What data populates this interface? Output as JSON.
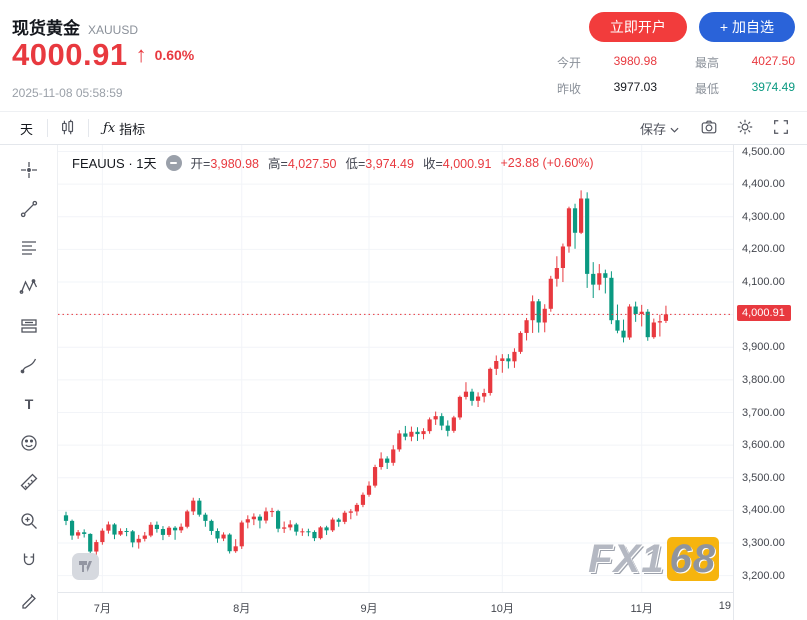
{
  "header": {
    "title": "现货黄金",
    "symbol": "XAUUSD",
    "price": "4000.91",
    "arrow": "↑",
    "change_pct": "0.60%",
    "timestamp": "2025-11-08 05:58:59",
    "open_account": "立即开户",
    "add_watchlist": "+ 加自选",
    "stats": [
      {
        "label": "今开",
        "value": "3980.98"
      },
      {
        "label": "最高",
        "value": "4027.50"
      },
      {
        "label": "昨收",
        "value": "3977.03"
      },
      {
        "label": "最低",
        "value": "3974.49"
      }
    ]
  },
  "toolbar": {
    "interval": "天",
    "fx": "ƒx",
    "indicators": "指标",
    "save": "保存"
  },
  "legend": {
    "symbol": "FEAUUS · 1天",
    "open_label": "开=",
    "open": "3,980.98",
    "high_label": "高=",
    "high": "4,027.50",
    "low_label": "低=",
    "low": "3,974.49",
    "close_label": "收=",
    "close": "4,000.91",
    "change": "+23.88 (+0.60%)"
  },
  "axis": {
    "price_ticks": [
      {
        "label": "4,500.00",
        "value": 4500
      },
      {
        "label": "4,400.00",
        "value": 4400
      },
      {
        "label": "4,300.00",
        "value": 4300
      },
      {
        "label": "4,200.00",
        "value": 4200
      },
      {
        "label": "4,100.00",
        "value": 4100
      },
      {
        "label": "4,000.00",
        "value": 4000
      },
      {
        "label": "3,900.00",
        "value": 3900
      },
      {
        "label": "3,800.00",
        "value": 3800
      },
      {
        "label": "3,700.00",
        "value": 3700
      },
      {
        "label": "3,600.00",
        "value": 3600
      },
      {
        "label": "3,500.00",
        "value": 3500
      },
      {
        "label": "3,400.00",
        "value": 3400
      },
      {
        "label": "3,300.00",
        "value": 3300
      },
      {
        "label": "3,200.00",
        "value": 3200
      }
    ],
    "edge_label": "19",
    "last_price_label": "4,000.91"
  },
  "watermark": {
    "fx": "FX1",
    "gold": "68"
  },
  "colors": {
    "up": "#e8393f",
    "down": "#0a9981",
    "btn_red": "#f23c3c",
    "btn_blue": "#2a63d9",
    "text_dark": "#15181e",
    "text_gray": "#8a9099"
  },
  "chart_data": {
    "type": "candlestick",
    "title": "FEAUUS · 1天",
    "ylim": [
      3150,
      4520
    ],
    "last_price": 4000.91,
    "legend_ohlc": {
      "open": 3980.98,
      "high": 4027.5,
      "low": 3974.49,
      "close": 4000.91,
      "change": 23.88,
      "change_pct": 0.6
    },
    "months": [
      {
        "label": "7月",
        "i": 6
      },
      {
        "label": "8月",
        "i": 29
      },
      {
        "label": "9月",
        "i": 50
      },
      {
        "label": "10月",
        "i": 72
      },
      {
        "label": "11月",
        "i": 95
      }
    ],
    "ohlc": [
      [
        3385,
        3396,
        3355,
        3368
      ],
      [
        3368,
        3372,
        3310,
        3323
      ],
      [
        3323,
        3340,
        3313,
        3333
      ],
      [
        3333,
        3342,
        3317,
        3328
      ],
      [
        3328,
        3330,
        3262,
        3274
      ],
      [
        3274,
        3310,
        3246,
        3303
      ],
      [
        3303,
        3345,
        3295,
        3338
      ],
      [
        3338,
        3366,
        3329,
        3357
      ],
      [
        3357,
        3361,
        3312,
        3326
      ],
      [
        3326,
        3345,
        3322,
        3337
      ],
      [
        3337,
        3346,
        3321,
        3336
      ],
      [
        3336,
        3340,
        3287,
        3302
      ],
      [
        3302,
        3325,
        3283,
        3313
      ],
      [
        3313,
        3334,
        3305,
        3323
      ],
      [
        3323,
        3364,
        3318,
        3356
      ],
      [
        3356,
        3366,
        3332,
        3343
      ],
      [
        3343,
        3352,
        3309,
        3325
      ],
      [
        3325,
        3352,
        3319,
        3347
      ],
      [
        3347,
        3352,
        3310,
        3339
      ],
      [
        3339,
        3360,
        3331,
        3350
      ],
      [
        3350,
        3402,
        3345,
        3397
      ],
      [
        3397,
        3439,
        3386,
        3430
      ],
      [
        3430,
        3438,
        3381,
        3387
      ],
      [
        3387,
        3393,
        3350,
        3368
      ],
      [
        3368,
        3372,
        3325,
        3337
      ],
      [
        3337,
        3345,
        3301,
        3314
      ],
      [
        3314,
        3333,
        3306,
        3326
      ],
      [
        3326,
        3330,
        3268,
        3275
      ],
      [
        3275,
        3312,
        3270,
        3290
      ],
      [
        3290,
        3369,
        3282,
        3363
      ],
      [
        3363,
        3385,
        3345,
        3373
      ],
      [
        3373,
        3391,
        3355,
        3381
      ],
      [
        3381,
        3388,
        3345,
        3369
      ],
      [
        3369,
        3409,
        3360,
        3397
      ],
      [
        3397,
        3408,
        3380,
        3398
      ],
      [
        3398,
        3402,
        3333,
        3344
      ],
      [
        3344,
        3366,
        3331,
        3348
      ],
      [
        3348,
        3370,
        3339,
        3357
      ],
      [
        3357,
        3362,
        3323,
        3335
      ],
      [
        3335,
        3345,
        3322,
        3336
      ],
      [
        3336,
        3344,
        3321,
        3334
      ],
      [
        3334,
        3339,
        3306,
        3315
      ],
      [
        3315,
        3352,
        3311,
        3348
      ],
      [
        3348,
        3353,
        3325,
        3339
      ],
      [
        3339,
        3378,
        3334,
        3372
      ],
      [
        3372,
        3377,
        3350,
        3365
      ],
      [
        3365,
        3399,
        3358,
        3393
      ],
      [
        3393,
        3404,
        3373,
        3397
      ],
      [
        3397,
        3423,
        3384,
        3417
      ],
      [
        3417,
        3455,
        3410,
        3448
      ],
      [
        3448,
        3489,
        3442,
        3476
      ],
      [
        3476,
        3540,
        3470,
        3533
      ],
      [
        3533,
        3578,
        3525,
        3559
      ],
      [
        3559,
        3566,
        3527,
        3546
      ],
      [
        3546,
        3600,
        3537,
        3587
      ],
      [
        3587,
        3646,
        3580,
        3636
      ],
      [
        3636,
        3659,
        3615,
        3626
      ],
      [
        3626,
        3657,
        3612,
        3641
      ],
      [
        3641,
        3655,
        3613,
        3634
      ],
      [
        3634,
        3652,
        3618,
        3643
      ],
      [
        3643,
        3685,
        3635,
        3679
      ],
      [
        3679,
        3703,
        3662,
        3689
      ],
      [
        3689,
        3698,
        3646,
        3660
      ],
      [
        3660,
        3676,
        3627,
        3644
      ],
      [
        3644,
        3690,
        3638,
        3685
      ],
      [
        3685,
        3752,
        3678,
        3748
      ],
      [
        3748,
        3793,
        3740,
        3764
      ],
      [
        3764,
        3773,
        3721,
        3736
      ],
      [
        3736,
        3762,
        3717,
        3749
      ],
      [
        3749,
        3773,
        3731,
        3760
      ],
      [
        3760,
        3838,
        3752,
        3834
      ],
      [
        3834,
        3875,
        3815,
        3858
      ],
      [
        3858,
        3879,
        3822,
        3866
      ],
      [
        3866,
        3879,
        3835,
        3857
      ],
      [
        3857,
        3897,
        3837,
        3886
      ],
      [
        3886,
        3949,
        3880,
        3944
      ],
      [
        3944,
        3990,
        3921,
        3983
      ],
      [
        3983,
        4059,
        3944,
        4041
      ],
      [
        4041,
        4048,
        3945,
        3976
      ],
      [
        3976,
        4032,
        3946,
        4018
      ],
      [
        4018,
        4119,
        4009,
        4110
      ],
      [
        4110,
        4179,
        4086,
        4143
      ],
      [
        4143,
        4218,
        4100,
        4209
      ],
      [
        4209,
        4331,
        4190,
        4326
      ],
      [
        4326,
        4340,
        4202,
        4251
      ],
      [
        4251,
        4381,
        4247,
        4356
      ],
      [
        4356,
        4375,
        4082,
        4125
      ],
      [
        4125,
        4161,
        4051,
        4092
      ],
      [
        4092,
        4155,
        4075,
        4127
      ],
      [
        4127,
        4138,
        4065,
        4113
      ],
      [
        4113,
        4133,
        3971,
        3983
      ],
      [
        3983,
        4031,
        3943,
        3951
      ],
      [
        3951,
        3985,
        3915,
        3930
      ],
      [
        3930,
        4032,
        3923,
        4025
      ],
      [
        4025,
        4040,
        3978,
        4002
      ],
      [
        4002,
        4030,
        3964,
        4009
      ],
      [
        4009,
        4017,
        3920,
        3931
      ],
      [
        3931,
        3988,
        3926,
        3976
      ],
      [
        3976,
        4000,
        3933,
        3980
      ],
      [
        3980.98,
        4027.5,
        3974.49,
        4000.91
      ]
    ]
  }
}
